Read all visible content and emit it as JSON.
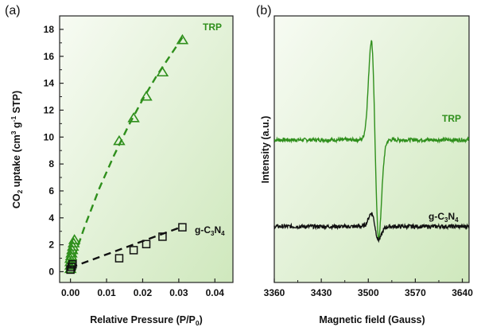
{
  "chart_data": [
    {
      "panel_label": "(a)",
      "type": "scatter",
      "xlabel": "Relative Pressure (P/P0)",
      "xlabel_parts": {
        "main": "Relative Pressure (P/P",
        "sub": "0",
        "end": ")"
      },
      "ylabel_parts": {
        "a": "CO",
        "a_sub": "2",
        "b": " uptake (cm",
        "b_sup": "3",
        "c": " g",
        "c_sup": "-1",
        "d": " STP)"
      },
      "xlim": [
        -0.003,
        0.045
      ],
      "ylim": [
        -0.8,
        19
      ],
      "xticks": [
        "0.00",
        "0.01",
        "0.02",
        "0.03",
        "0.04"
      ],
      "xtick_values": [
        0.0,
        0.01,
        0.02,
        0.03,
        0.04
      ],
      "yticks": [
        "0",
        "2",
        "4",
        "6",
        "8",
        "10",
        "12",
        "14",
        "16",
        "18"
      ],
      "ytick_values": [
        0,
        2,
        4,
        6,
        8,
        10,
        12,
        14,
        16,
        18
      ],
      "series": [
        {
          "name": "TRP",
          "color": "#2f8f1c",
          "marker": "triangle",
          "x": [
            0.0,
            0.0,
            0.0,
            0.0,
            0.0002,
            0.0003,
            0.0005,
            0.0007,
            0.0009,
            0.0011,
            0.0135,
            0.0175,
            0.021,
            0.0255,
            0.031
          ],
          "y": [
            0.2,
            0.45,
            0.7,
            0.95,
            1.15,
            1.35,
            1.6,
            1.85,
            2.1,
            2.35,
            9.7,
            11.4,
            13.0,
            14.8,
            17.2
          ],
          "fit_x": [
            0.0,
            0.004,
            0.008,
            0.012,
            0.016,
            0.02,
            0.024,
            0.028,
            0.031
          ],
          "fit_y": [
            0.3,
            3.4,
            6.2,
            8.6,
            10.8,
            12.8,
            14.6,
            16.2,
            17.4
          ]
        },
        {
          "name": "g-C3N4",
          "label_parts": {
            "a": "g-C",
            "b": "3",
            "c": "N",
            "d": "4"
          },
          "color": "#111111",
          "marker": "square",
          "x": [
            0.0,
            0.0003,
            0.0006,
            0.0135,
            0.0175,
            0.021,
            0.0255,
            0.031
          ],
          "y": [
            0.15,
            0.35,
            0.55,
            1.0,
            1.6,
            2.05,
            2.6,
            3.3
          ],
          "fit_x": [
            0.0,
            0.031
          ],
          "fit_y": [
            0.3,
            3.35
          ]
        }
      ]
    },
    {
      "panel_label": "(b)",
      "type": "line",
      "xlabel": "Magnetic field (Gauss)",
      "ylabel": "Intensity (a.u.)",
      "xlim": [
        3360,
        3650
      ],
      "ylim": [
        -1,
        1
      ],
      "xticks": [
        "3360",
        "3430",
        "3500",
        "3570",
        "3640"
      ],
      "xtick_values": [
        3360,
        3430,
        3500,
        3570,
        3640
      ],
      "series": [
        {
          "name": "TRP",
          "color": "#2f8f1c",
          "center": 3510,
          "amplitude": 0.74,
          "baseline": 0.07
        },
        {
          "name": "g-C3N4",
          "label_parts": {
            "a": "g-C",
            "b": "3",
            "c": "N",
            "d": "4"
          },
          "color": "#111111",
          "center": 3510,
          "amplitude": 0.1,
          "baseline": -0.58
        }
      ]
    }
  ]
}
